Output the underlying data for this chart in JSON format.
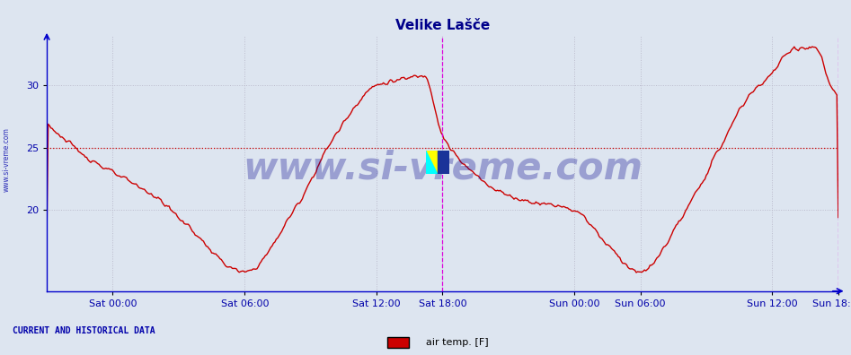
{
  "title": "Velike Lašče",
  "title_color": "#00008B",
  "title_fontsize": 11,
  "background_color": "#dde5f0",
  "plot_bg_color": "#dde5f0",
  "line_color": "#cc0000",
  "line_width": 1.0,
  "ylabel_ticks": [
    20,
    25,
    30
  ],
  "ylim": [
    13.5,
    34.0
  ],
  "xlim": [
    0,
    576
  ],
  "x_ticks": [
    48,
    144,
    240,
    288,
    384,
    432,
    528,
    576
  ],
  "x_tick_labels": [
    "Sat 00:00",
    "Sat 06:00",
    "Sat 12:00",
    "Sat 18:00",
    "Sun 00:00",
    "Sun 06:00",
    "Sun 12:00",
    "Sun 18:00"
  ],
  "grid_color": "#bbbbcc",
  "vline1_x": 288,
  "vline2_x": 576,
  "vline_color": "#dd00dd",
  "hline_y": 25.0,
  "hline_color": "#cc0000",
  "watermark_text": "www.si-vreme.com",
  "watermark_color": "#00008B",
  "watermark_alpha": 0.3,
  "watermark_fontsize": 30,
  "sidebar_text": "www.si-vreme.com",
  "sidebar_color": "#0000aa",
  "bottom_left_text": "CURRENT AND HISTORICAL DATA",
  "bottom_left_color": "#0000aa",
  "legend_label": "air temp. [F]",
  "legend_color": "#cc0000",
  "axis_color": "#0000cc",
  "tick_color": "#0000aa",
  "tick_fontsize": 8
}
